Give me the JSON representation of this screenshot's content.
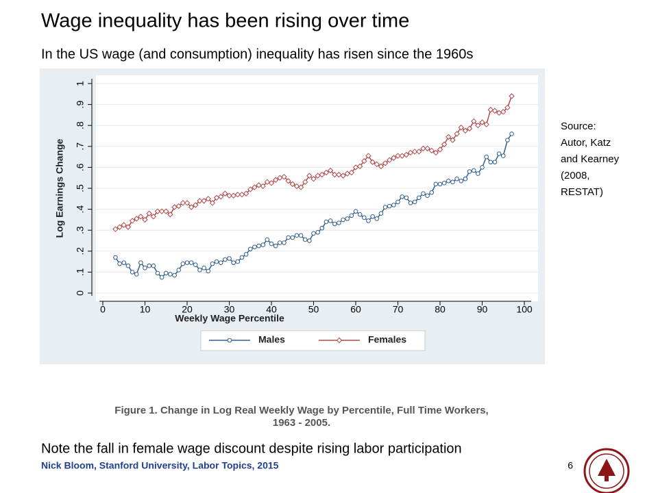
{
  "slide": {
    "title": "Wage inequality has been rising over time",
    "subtitle": "In the US wage (and consumption) inequality has risen since the 1960s",
    "source_lines": [
      "Source:",
      "Autor, Katz",
      "and Kearney",
      "(2008,",
      "RESTAT)"
    ],
    "caption_lines": [
      "Figure 1. Change in Log Real Weekly Wage by Percentile, Full Time Workers,",
      "1963 - 2005."
    ],
    "note": "Note the fall in female wage discount despite rising labor participation",
    "footer": "Nick Bloom, Stanford University, Labor Topics, 2015",
    "page_number": "6"
  },
  "chart_data": {
    "type": "line",
    "xlabel": "Weekly Wage Percentile",
    "ylabel": "Log Earnings Change",
    "x": [
      3,
      4,
      5,
      6,
      7,
      8,
      9,
      10,
      11,
      12,
      13,
      14,
      15,
      16,
      17,
      18,
      19,
      20,
      21,
      22,
      23,
      24,
      25,
      26,
      27,
      28,
      29,
      30,
      31,
      32,
      33,
      34,
      35,
      36,
      37,
      38,
      39,
      40,
      41,
      42,
      43,
      44,
      45,
      46,
      47,
      48,
      49,
      50,
      51,
      52,
      53,
      54,
      55,
      56,
      57,
      58,
      59,
      60,
      61,
      62,
      63,
      64,
      65,
      66,
      67,
      68,
      69,
      70,
      71,
      72,
      73,
      74,
      75,
      76,
      77,
      78,
      79,
      80,
      81,
      82,
      83,
      84,
      85,
      86,
      87,
      88,
      89,
      90,
      91,
      92,
      93,
      94,
      95,
      96,
      97
    ],
    "series": [
      {
        "name": "Males",
        "color": "#2f5d8c",
        "marker": "circle",
        "values": [
          0.17,
          0.14,
          0.145,
          0.13,
          0.1,
          0.09,
          0.145,
          0.12,
          0.13,
          0.13,
          0.095,
          0.075,
          0.095,
          0.09,
          0.085,
          0.11,
          0.14,
          0.145,
          0.145,
          0.135,
          0.11,
          0.12,
          0.105,
          0.14,
          0.15,
          0.145,
          0.16,
          0.165,
          0.145,
          0.15,
          0.17,
          0.185,
          0.21,
          0.22,
          0.225,
          0.23,
          0.255,
          0.235,
          0.225,
          0.24,
          0.24,
          0.265,
          0.265,
          0.275,
          0.275,
          0.255,
          0.25,
          0.285,
          0.29,
          0.31,
          0.34,
          0.345,
          0.33,
          0.335,
          0.35,
          0.355,
          0.37,
          0.39,
          0.375,
          0.36,
          0.345,
          0.365,
          0.355,
          0.38,
          0.41,
          0.415,
          0.42,
          0.435,
          0.46,
          0.455,
          0.43,
          0.435,
          0.455,
          0.475,
          0.465,
          0.48,
          0.52,
          0.52,
          0.525,
          0.535,
          0.53,
          0.545,
          0.535,
          0.545,
          0.58,
          0.585,
          0.57,
          0.6,
          0.65,
          0.625,
          0.625,
          0.665,
          0.655,
          0.73,
          0.76
        ]
      },
      {
        "name": "Females",
        "color": "#b04848",
        "marker": "diamond",
        "values": [
          0.305,
          0.315,
          0.325,
          0.315,
          0.345,
          0.355,
          0.365,
          0.35,
          0.38,
          0.365,
          0.39,
          0.39,
          0.39,
          0.375,
          0.41,
          0.415,
          0.43,
          0.43,
          0.41,
          0.42,
          0.44,
          0.44,
          0.45,
          0.43,
          0.455,
          0.46,
          0.475,
          0.465,
          0.465,
          0.47,
          0.47,
          0.475,
          0.495,
          0.505,
          0.515,
          0.51,
          0.53,
          0.525,
          0.54,
          0.55,
          0.555,
          0.535,
          0.52,
          0.51,
          0.505,
          0.53,
          0.56,
          0.545,
          0.56,
          0.565,
          0.575,
          0.585,
          0.565,
          0.565,
          0.56,
          0.57,
          0.575,
          0.6,
          0.605,
          0.63,
          0.655,
          0.625,
          0.615,
          0.605,
          0.62,
          0.635,
          0.645,
          0.655,
          0.655,
          0.66,
          0.67,
          0.675,
          0.675,
          0.69,
          0.69,
          0.68,
          0.67,
          0.685,
          0.71,
          0.745,
          0.73,
          0.76,
          0.79,
          0.775,
          0.785,
          0.82,
          0.8,
          0.815,
          0.805,
          0.875,
          0.87,
          0.86,
          0.865,
          0.885,
          0.94
        ]
      }
    ],
    "xlim": [
      0,
      100
    ],
    "xticks": [
      0,
      10,
      20,
      30,
      40,
      50,
      60,
      70,
      80,
      90,
      100
    ],
    "ylim": [
      0,
      1
    ],
    "yticks": [
      0,
      {
        "value": 0.1,
        "label": ".1"
      },
      {
        "value": 0.2,
        "label": ".2"
      },
      {
        "value": 0.3,
        "label": ".3"
      },
      {
        "value": 0.4,
        "label": ".4"
      },
      {
        "value": 0.5,
        "label": ".5"
      },
      {
        "value": 0.6,
        "label": ".6"
      },
      {
        "value": 0.7,
        "label": ".7"
      },
      {
        "value": 0.8,
        "label": ".8"
      },
      {
        "value": 0.9,
        "label": ".9"
      },
      1
    ],
    "grid": true,
    "legend": "bottom"
  }
}
